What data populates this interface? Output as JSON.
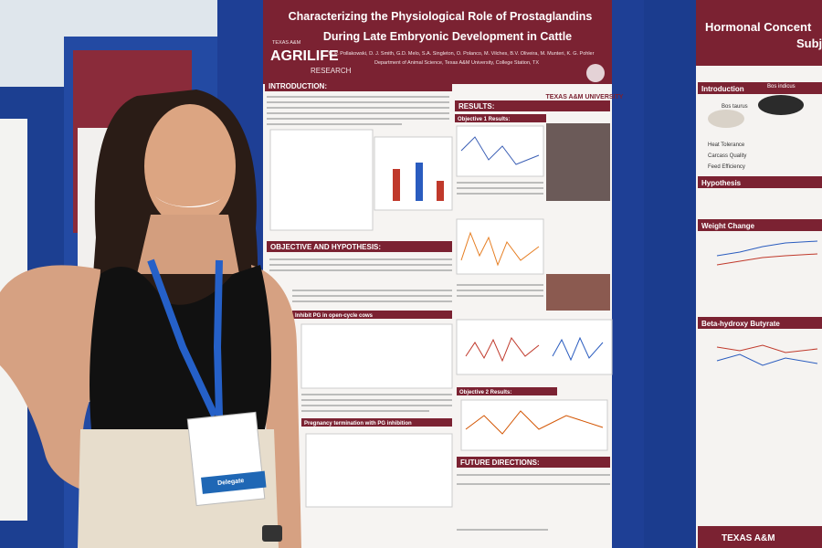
{
  "main_poster": {
    "logo_left_top": "TEXAS A&M",
    "logo_left_main": "AGRILIFE",
    "logo_left_bottom": "RESEARCH",
    "logo_right": "TEXAS A&M UNIVERSITY",
    "title_lines": [
      "Characterizing the Physiological Role of Prostaglandins",
      "During Late Embryonic Development in Cattle"
    ],
    "authors": "B. P. Pollakowski, D. J. Smith, G.D. Melo, S.A. Singleton, O. Polanco, M. Vilches, B.V. Oliveira, M. Munteri, K. G. Pohler",
    "affiliation": "Department of Animal Science, Texas A&M University, College Station, TX",
    "sections": {
      "introduction": "INTRODUCTION:",
      "results": "RESULTS:",
      "objective_1_results": "Objective 1 Results:",
      "objective_and_hypothesis": "OBJECTIVE AND HYPOTHESIS:",
      "inhibit_pg": "Inhibit PG in open-cycle cows",
      "objective_2_results": "Objective 2 Results:",
      "pregnancy_termination": "Pregnancy termination with PG inhibition",
      "future_directions": "FUTURE DIRECTIONS:"
    }
  },
  "right_poster": {
    "title_lines": [
      "Hormonal Concent",
      "Subj"
    ],
    "sections": {
      "introduction": "Introduction",
      "hypothesis": "Hypothesis",
      "weight_change": "Weight Change",
      "bhb": "Beta-hydroxy Butyrate"
    },
    "breeds": [
      "Bos taurus",
      "Bos indicus"
    ],
    "traits": [
      "Heat Tolerance",
      "Carcass Quality",
      "Feed Efficiency"
    ],
    "footer_logo": "TEXAS A&M"
  },
  "badge": {
    "role": "Delegate"
  }
}
